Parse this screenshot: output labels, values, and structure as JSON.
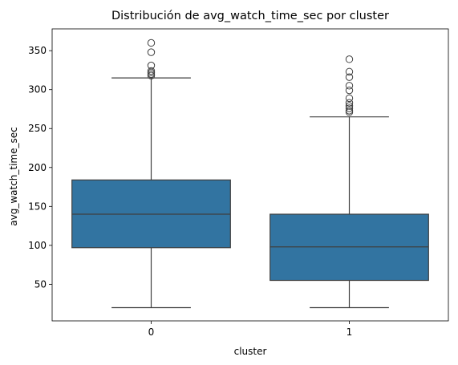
{
  "chart_data": {
    "type": "boxplot",
    "title": "Distribución de avg_watch_time_sec por cluster",
    "xlabel": "cluster",
    "ylabel": "avg_watch_time_sec",
    "categories": [
      "0",
      "1"
    ],
    "ylim": [
      3,
      378
    ],
    "yticks": [
      50,
      100,
      150,
      200,
      250,
      300,
      350
    ],
    "grid": false,
    "box_color": "#3274a1",
    "line_color": "#3f3f3f",
    "boxes": [
      {
        "category": "0",
        "whisker_low": 20,
        "q1": 97,
        "median": 140,
        "q3": 184,
        "whisker_high": 315,
        "outliers": [
          318,
          320,
          322,
          324,
          331,
          348,
          360
        ]
      },
      {
        "category": "1",
        "whisker_low": 20,
        "q1": 55,
        "median": 98,
        "q3": 140,
        "whisker_high": 265,
        "outliers": [
          271,
          273,
          276,
          279,
          283,
          289,
          299,
          305,
          316,
          323,
          339
        ]
      }
    ]
  }
}
